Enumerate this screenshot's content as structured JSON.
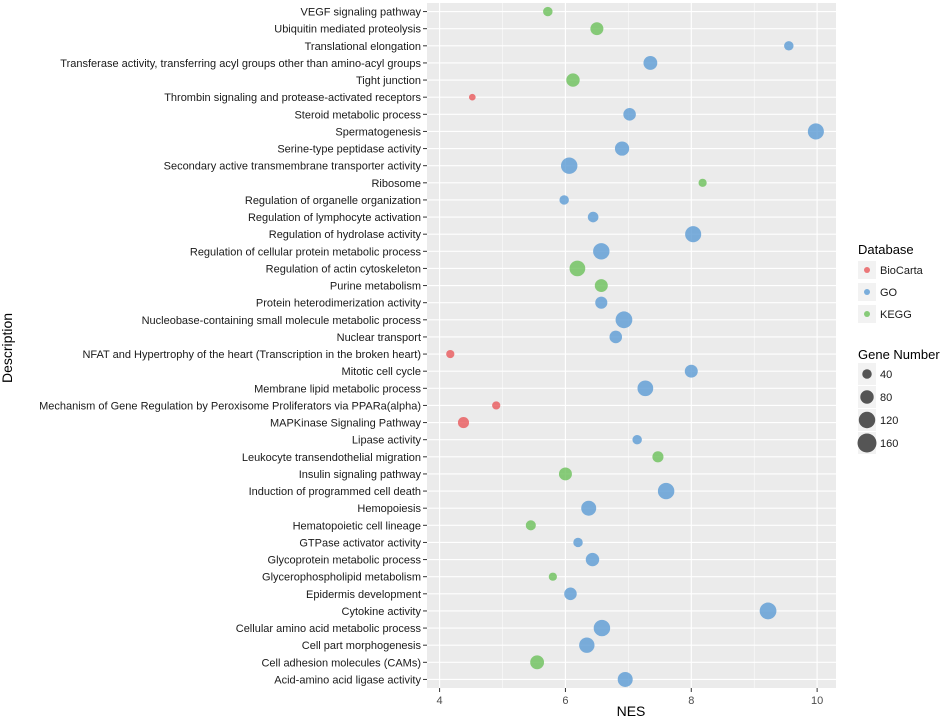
{
  "chart_data": {
    "type": "scatter",
    "title": "",
    "xlabel": "NES",
    "ylabel": "Description",
    "xlim": [
      3.8,
      10.3
    ],
    "xticks": [
      4,
      6,
      8,
      10
    ],
    "grid": true,
    "legend_placement": "right",
    "color_legend": {
      "title": "Database",
      "entries": [
        {
          "name": "BioCarta",
          "color": "#e8585a"
        },
        {
          "name": "GO",
          "color": "#5b9bd5"
        },
        {
          "name": "KEGG",
          "color": "#6cc05a"
        }
      ]
    },
    "size_legend": {
      "title": "Gene Number",
      "values": [
        40,
        80,
        120,
        160
      ]
    },
    "points": [
      {
        "label": "VEGF signaling pathway",
        "nes": 5.72,
        "db": "KEGG",
        "genes": 40
      },
      {
        "label": "Ubiquitin mediated proteolysis",
        "nes": 6.5,
        "db": "KEGG",
        "genes": 75
      },
      {
        "label": "Translational elongation",
        "nes": 9.55,
        "db": "GO",
        "genes": 40
      },
      {
        "label": "Transferase activity, transferring acyl groups other than amino-acyl groups",
        "nes": 7.35,
        "db": "GO",
        "genes": 85
      },
      {
        "label": "Tight junction",
        "nes": 6.12,
        "db": "KEGG",
        "genes": 80
      },
      {
        "label": "Thrombin signaling and protease-activated receptors",
        "nes": 4.52,
        "db": "BioCarta",
        "genes": 20
      },
      {
        "label": "Steroid metabolic process",
        "nes": 7.02,
        "db": "GO",
        "genes": 70
      },
      {
        "label": "Spermatogenesis",
        "nes": 9.98,
        "db": "GO",
        "genes": 115
      },
      {
        "label": "Serine-type peptidase activity",
        "nes": 6.9,
        "db": "GO",
        "genes": 90
      },
      {
        "label": "Secondary active transmembrane transporter activity",
        "nes": 6.06,
        "db": "GO",
        "genes": 120
      },
      {
        "label": "Ribosome",
        "nes": 8.18,
        "db": "KEGG",
        "genes": 30
      },
      {
        "label": "Regulation of organelle organization",
        "nes": 5.98,
        "db": "GO",
        "genes": 40
      },
      {
        "label": "Regulation of lymphocyte activation",
        "nes": 6.44,
        "db": "GO",
        "genes": 50
      },
      {
        "label": "Regulation of hydrolase activity",
        "nes": 8.03,
        "db": "GO",
        "genes": 115
      },
      {
        "label": "Regulation of cellular protein metabolic process",
        "nes": 6.57,
        "db": "GO",
        "genes": 120
      },
      {
        "label": "Regulation of actin cytoskeleton",
        "nes": 6.19,
        "db": "KEGG",
        "genes": 110
      },
      {
        "label": "Purine metabolism",
        "nes": 6.57,
        "db": "KEGG",
        "genes": 75
      },
      {
        "label": "Protein heterodimerization activity",
        "nes": 6.57,
        "db": "GO",
        "genes": 65
      },
      {
        "label": "Nucleobase-containing small molecule metabolic process",
        "nes": 6.93,
        "db": "GO",
        "genes": 125
      },
      {
        "label": "Nuclear transport",
        "nes": 6.8,
        "db": "GO",
        "genes": 70
      },
      {
        "label": "NFAT and Hypertrophy of the heart (Transcription in the broken heart)",
        "nes": 4.17,
        "db": "BioCarta",
        "genes": 30
      },
      {
        "label": "Mitotic cell cycle",
        "nes": 8.0,
        "db": "GO",
        "genes": 75
      },
      {
        "label": "Membrane lipid metabolic process",
        "nes": 7.27,
        "db": "GO",
        "genes": 110
      },
      {
        "label": "Mechanism of Gene Regulation by Peroxisome Proliferators via PPARa(alpha)",
        "nes": 4.9,
        "db": "BioCarta",
        "genes": 30
      },
      {
        "label": "MAPKinase Signaling Pathway",
        "nes": 4.38,
        "db": "BioCarta",
        "genes": 55
      },
      {
        "label": "Lipase activity",
        "nes": 7.14,
        "db": "GO",
        "genes": 40
      },
      {
        "label": "Leukocyte transendothelial migration",
        "nes": 7.47,
        "db": "KEGG",
        "genes": 55
      },
      {
        "label": "Insulin signaling pathway",
        "nes": 6.0,
        "db": "KEGG",
        "genes": 75
      },
      {
        "label": "Induction of programmed cell death",
        "nes": 7.6,
        "db": "GO",
        "genes": 120
      },
      {
        "label": "Hemopoiesis",
        "nes": 6.37,
        "db": "GO",
        "genes": 100
      },
      {
        "label": "Hematopoietic cell lineage",
        "nes": 5.45,
        "db": "KEGG",
        "genes": 45
      },
      {
        "label": "GTPase activator activity",
        "nes": 6.2,
        "db": "GO",
        "genes": 40
      },
      {
        "label": "Glycoprotein metabolic process",
        "nes": 6.43,
        "db": "GO",
        "genes": 80
      },
      {
        "label": "Glycerophospholipid metabolism",
        "nes": 5.8,
        "db": "KEGG",
        "genes": 30
      },
      {
        "label": "Epidermis development",
        "nes": 6.08,
        "db": "GO",
        "genes": 70
      },
      {
        "label": "Cytokine activity",
        "nes": 9.22,
        "db": "GO",
        "genes": 125
      },
      {
        "label": "Cellular amino acid metabolic process",
        "nes": 6.58,
        "db": "GO",
        "genes": 120
      },
      {
        "label": "Cell part morphogenesis",
        "nes": 6.34,
        "db": "GO",
        "genes": 105
      },
      {
        "label": "Cell adhesion molecules (CAMs)",
        "nes": 5.55,
        "db": "KEGG",
        "genes": 85
      },
      {
        "label": "Acid-amino acid ligase activity",
        "nes": 6.95,
        "db": "GO",
        "genes": 100
      }
    ]
  }
}
